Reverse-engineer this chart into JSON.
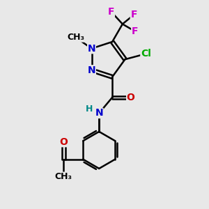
{
  "bg_color": "#e8e8e8",
  "bond_color": "#000000",
  "bond_width": 1.8,
  "atom_colors": {
    "N": "#0000cc",
    "O": "#cc0000",
    "Cl": "#00aa00",
    "F": "#cc00cc",
    "H": "#008888",
    "C": "#000000"
  },
  "font_size": 10,
  "small_font_size": 8,
  "fig_width": 3.0,
  "fig_height": 3.0,
  "dpi": 100,
  "xlim": [
    0,
    10
  ],
  "ylim": [
    0,
    10
  ]
}
